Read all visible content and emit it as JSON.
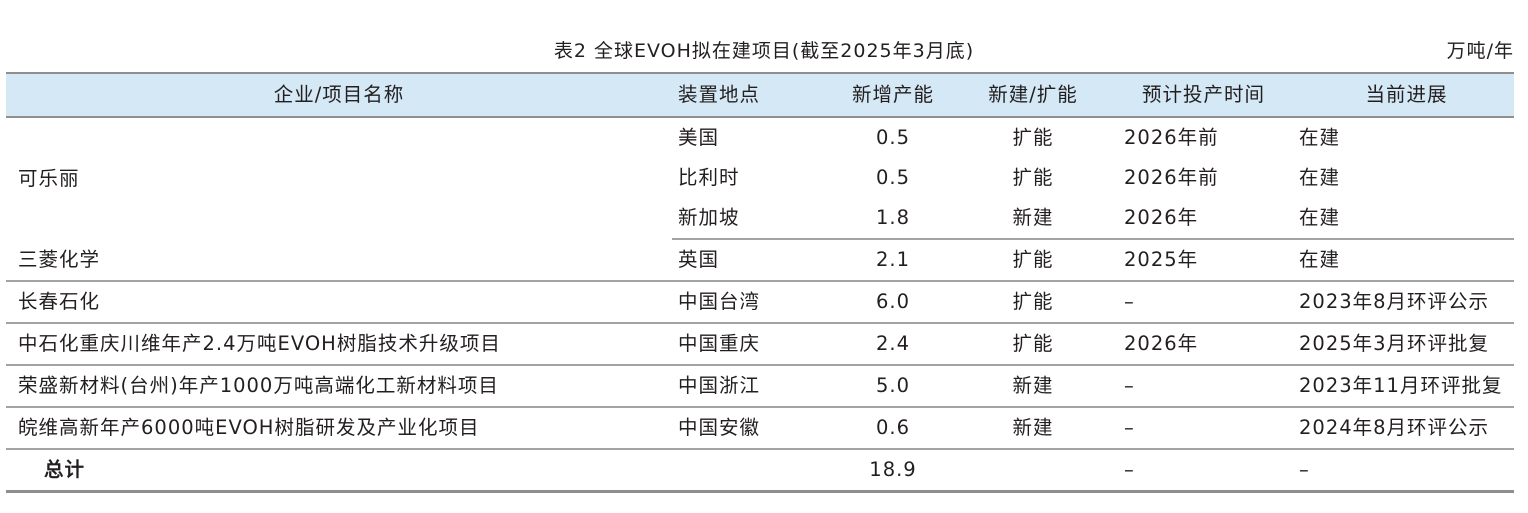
{
  "caption": {
    "title": "表2  全球EVOH拟在建项目(截至2025年3月底)",
    "unit": "万吨/年"
  },
  "columns": [
    "企业/项目名称",
    "装置地点",
    "新增产能",
    "新建/扩能",
    "预计投产时间",
    "当前进展"
  ],
  "rows": [
    {
      "name": "可乐丽",
      "location": "美国",
      "capacity": "0.5",
      "type": "扩能",
      "time": "2026年前",
      "progress": "在建"
    },
    {
      "name": "",
      "location": "比利时",
      "capacity": "0.5",
      "type": "扩能",
      "time": "2026年前",
      "progress": "在建"
    },
    {
      "name": "",
      "location": "新加坡",
      "capacity": "1.8",
      "type": "新建",
      "time": "2026年",
      "progress": "在建"
    },
    {
      "name": "三菱化学",
      "location": "英国",
      "capacity": "2.1",
      "type": "扩能",
      "time": "2025年",
      "progress": "在建"
    },
    {
      "name": "长春石化",
      "location": "中国台湾",
      "capacity": "6.0",
      "type": "扩能",
      "time": "–",
      "progress": "2023年8月环评公示"
    },
    {
      "name": "中石化重庆川维年产2.4万吨EVOH树脂技术升级项目",
      "location": "中国重庆",
      "capacity": "2.4",
      "type": "扩能",
      "time": "2026年",
      "progress": "2025年3月环评批复"
    },
    {
      "name": "荣盛新材料(台州)年产1000万吨高端化工新材料项目",
      "location": "中国浙江",
      "capacity": "5.0",
      "type": "新建",
      "time": "–",
      "progress": "2023年11月环评批复"
    },
    {
      "name": "皖维高新年产6000吨EVOH树脂研发及产业化项目",
      "location": "中国安徽",
      "capacity": "0.6",
      "type": "新建",
      "time": "–",
      "progress": "2024年8月环评公示"
    }
  ],
  "total": {
    "label": "总计",
    "capacity": "18.9",
    "time": "–",
    "progress": "–"
  }
}
